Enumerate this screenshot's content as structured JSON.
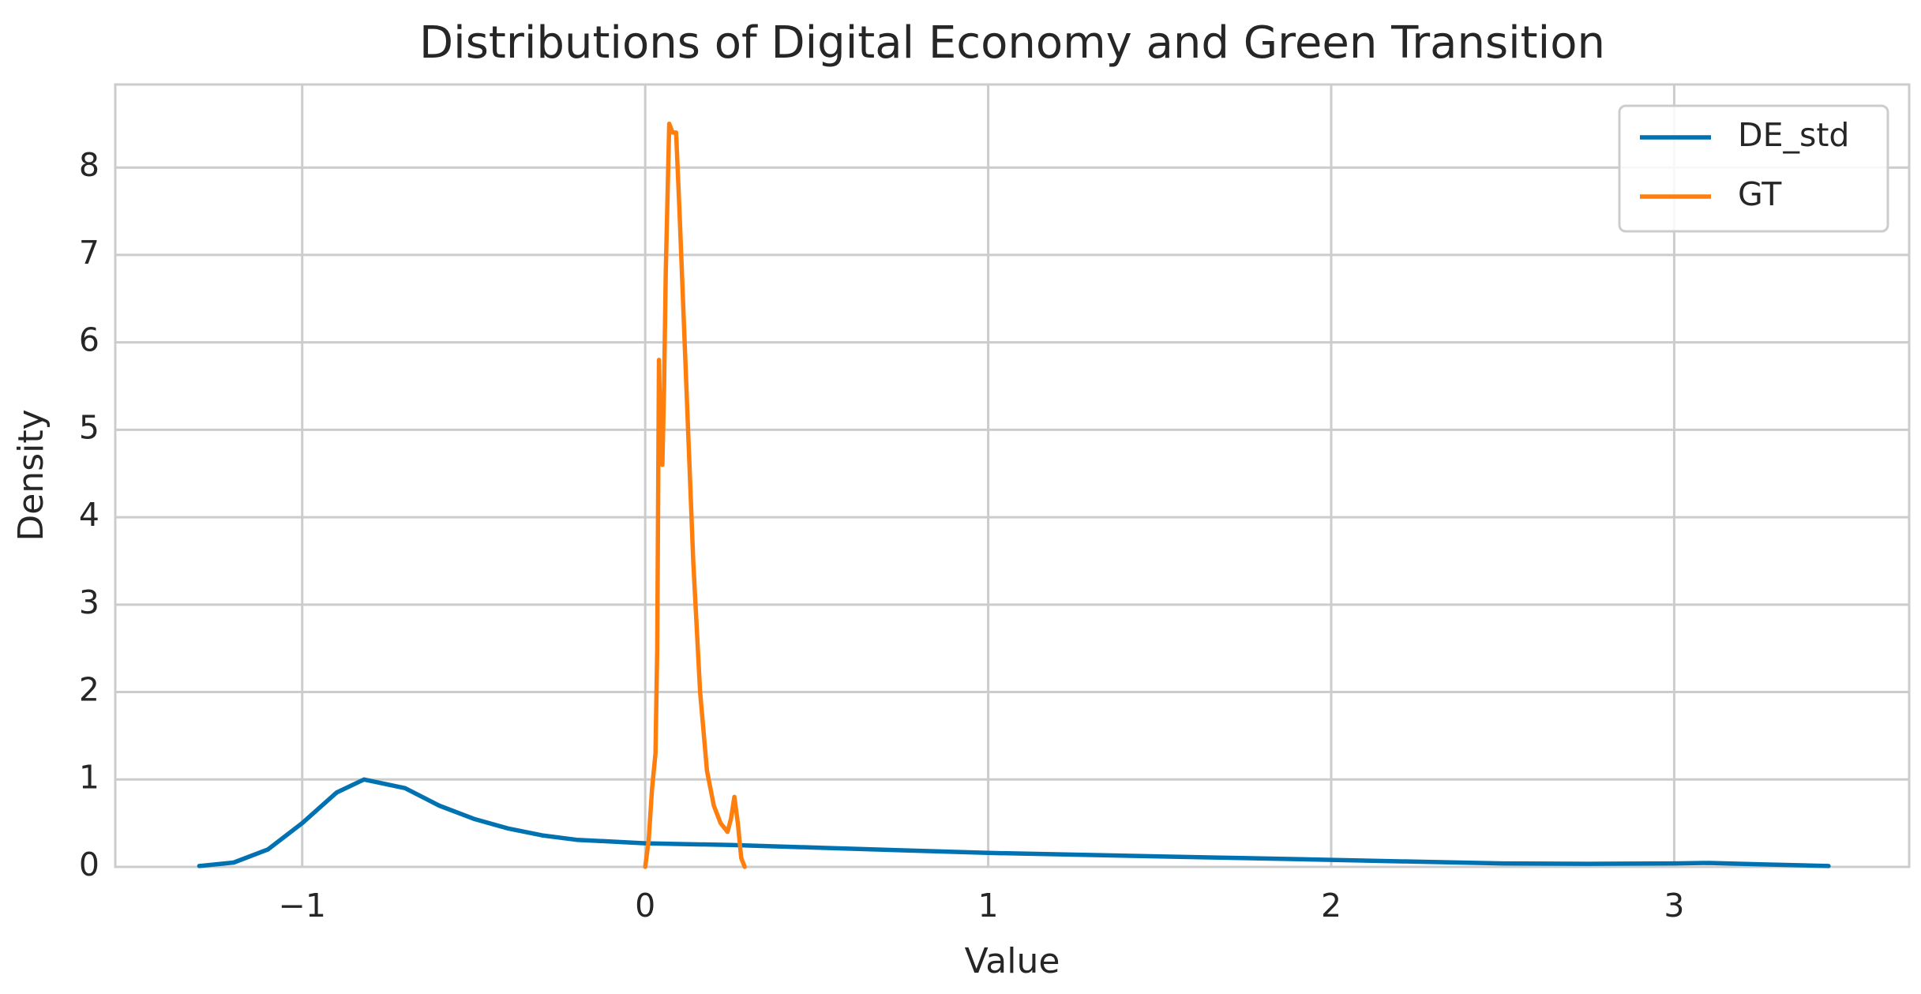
{
  "chart_data": {
    "type": "line",
    "title": "Distributions of Digital Economy and Green Transition",
    "x_label": "Value",
    "y_label": "Density",
    "xlim": [
      -1.545,
      3.685
    ],
    "ylim": [
      0,
      8.95
    ],
    "xticks": [
      {
        "value": -1,
        "label": "−1"
      },
      0,
      1,
      2,
      3
    ],
    "yticks": [
      0,
      1,
      2,
      3,
      4,
      5,
      6,
      7,
      8
    ],
    "grid": true,
    "legend": "upper right",
    "series": [
      {
        "name": "DE_std",
        "color": "#0072b2",
        "x": [
          -1.3,
          -1.2,
          -1.1,
          -1.0,
          -0.9,
          -0.82,
          -0.7,
          -0.6,
          -0.5,
          -0.4,
          -0.3,
          -0.2,
          -0.1,
          0,
          0.25,
          0.5,
          0.75,
          1.0,
          1.25,
          1.5,
          1.75,
          2.0,
          2.25,
          2.5,
          2.75,
          3.0,
          3.1,
          3.25,
          3.45
        ],
        "values": [
          0.01,
          0.05,
          0.2,
          0.5,
          0.85,
          1.0,
          0.9,
          0.7,
          0.55,
          0.44,
          0.36,
          0.31,
          0.29,
          0.27,
          0.25,
          0.22,
          0.19,
          0.16,
          0.14,
          0.12,
          0.1,
          0.08,
          0.06,
          0.04,
          0.035,
          0.04,
          0.045,
          0.03,
          0.01
        ]
      },
      {
        "name": "GT",
        "color": "#ff7f0e",
        "x": [
          0.0,
          0.01,
          0.02,
          0.03,
          0.035,
          0.04,
          0.045,
          0.05,
          0.055,
          0.06,
          0.07,
          0.08,
          0.09,
          0.1,
          0.12,
          0.14,
          0.16,
          0.18,
          0.2,
          0.22,
          0.24,
          0.25,
          0.26,
          0.27,
          0.28,
          0.29
        ],
        "values": [
          0,
          0.3,
          0.9,
          1.3,
          2.5,
          5.8,
          4.8,
          4.6,
          5.5,
          6.8,
          8.5,
          8.4,
          8.4,
          7.5,
          5.5,
          3.5,
          2.0,
          1.1,
          0.7,
          0.5,
          0.4,
          0.55,
          0.8,
          0.5,
          0.1,
          0
        ]
      }
    ]
  }
}
